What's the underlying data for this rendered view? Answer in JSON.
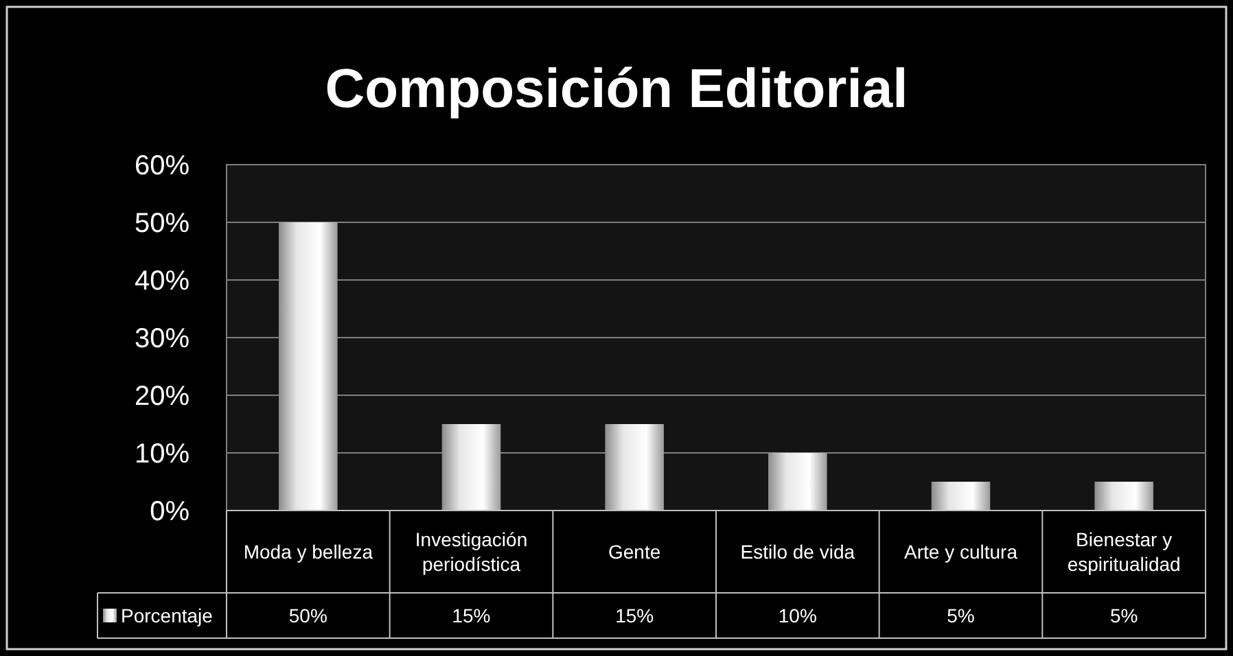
{
  "chart_data": {
    "type": "bar",
    "title": "Composición Editorial",
    "categories": [
      "Moda y belleza",
      "Investigación periodística",
      "Gente",
      "Estilo de vida",
      "Arte y cultura",
      "Bienestar y espiritualidad"
    ],
    "series": [
      {
        "name": "Porcentaje",
        "color": "#e6e6e6",
        "values": [
          50,
          15,
          15,
          10,
          5,
          5
        ],
        "value_labels": [
          "50%",
          "15%",
          "15%",
          "10%",
          "5%",
          "5%"
        ]
      }
    ],
    "ylim": [
      0,
      60
    ],
    "yticks": [
      {
        "value": 0,
        "label": "0%"
      },
      {
        "value": 10,
        "label": "10%"
      },
      {
        "value": 20,
        "label": "20%"
      },
      {
        "value": 30,
        "label": "30%"
      },
      {
        "value": 40,
        "label": "40%"
      },
      {
        "value": 50,
        "label": "50%"
      },
      {
        "value": 60,
        "label": "60%"
      }
    ],
    "grid": "y",
    "legend": "bottom"
  }
}
